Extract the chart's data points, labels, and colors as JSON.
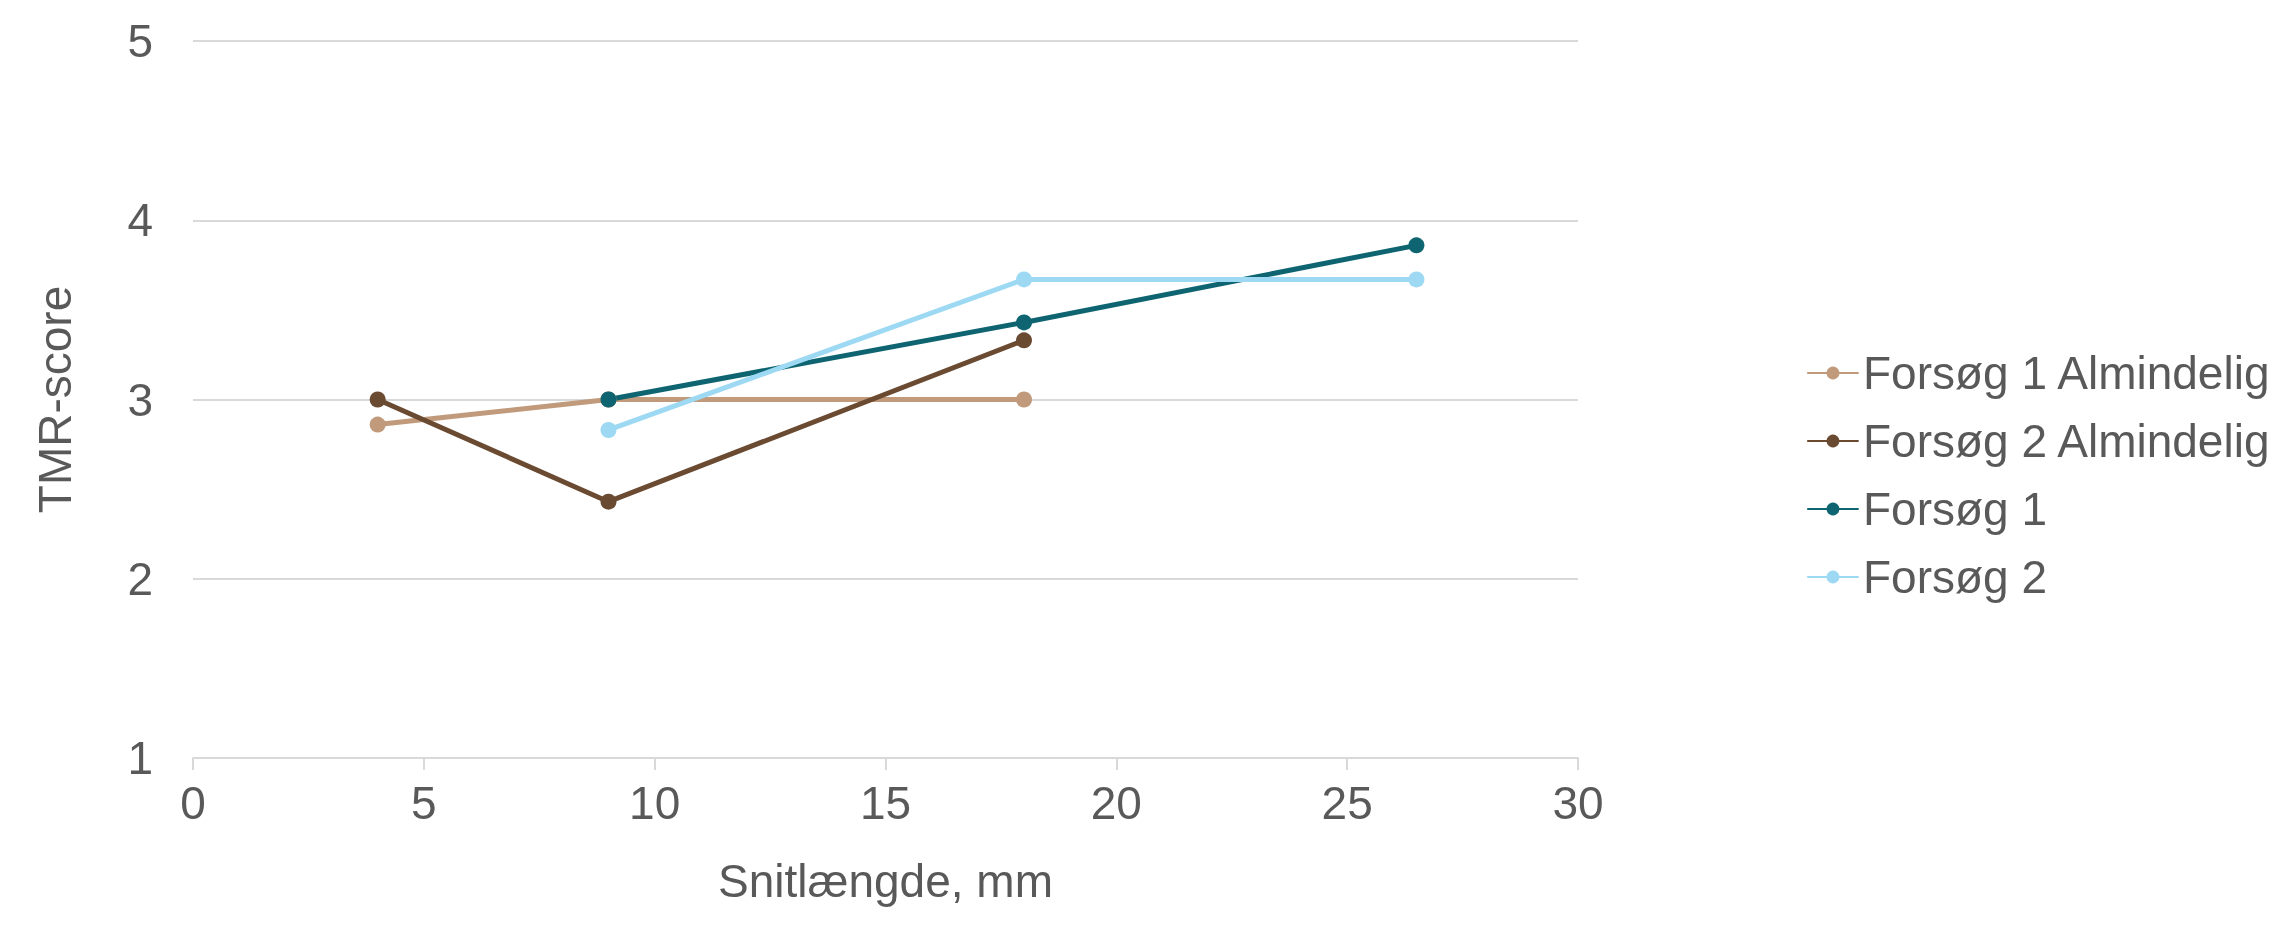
{
  "chart_data": {
    "type": "line",
    "xlabel": "Snitlængde, mm",
    "ylabel": "TMR-score",
    "xlim": [
      0,
      30
    ],
    "xticks": [
      0,
      5,
      10,
      15,
      20,
      25,
      30
    ],
    "ylim": [
      1,
      5
    ],
    "yticks": [
      1,
      2,
      3,
      4,
      5
    ],
    "grid": "y",
    "legend": "right",
    "marker": "circle",
    "line_style": "solid",
    "series": [
      {
        "name": "Forsøg 1 Almindelig",
        "color": "#c09a7b",
        "x": [
          4,
          9,
          18
        ],
        "values": [
          2.86,
          3.0,
          3.0
        ]
      },
      {
        "name": "Forsøg 2 Almindelig",
        "color": "#6b4a32",
        "x": [
          4,
          9,
          18
        ],
        "values": [
          3.0,
          2.43,
          3.33
        ]
      },
      {
        "name": "Forsøg 1",
        "color": "#0e6470",
        "x": [
          9,
          18,
          26.5
        ],
        "values": [
          3.0,
          3.43,
          3.86
        ]
      },
      {
        "name": "Forsøg 2",
        "color": "#9dd9f3",
        "x": [
          9,
          18,
          26.5
        ],
        "values": [
          2.83,
          3.67,
          3.67
        ]
      }
    ]
  }
}
